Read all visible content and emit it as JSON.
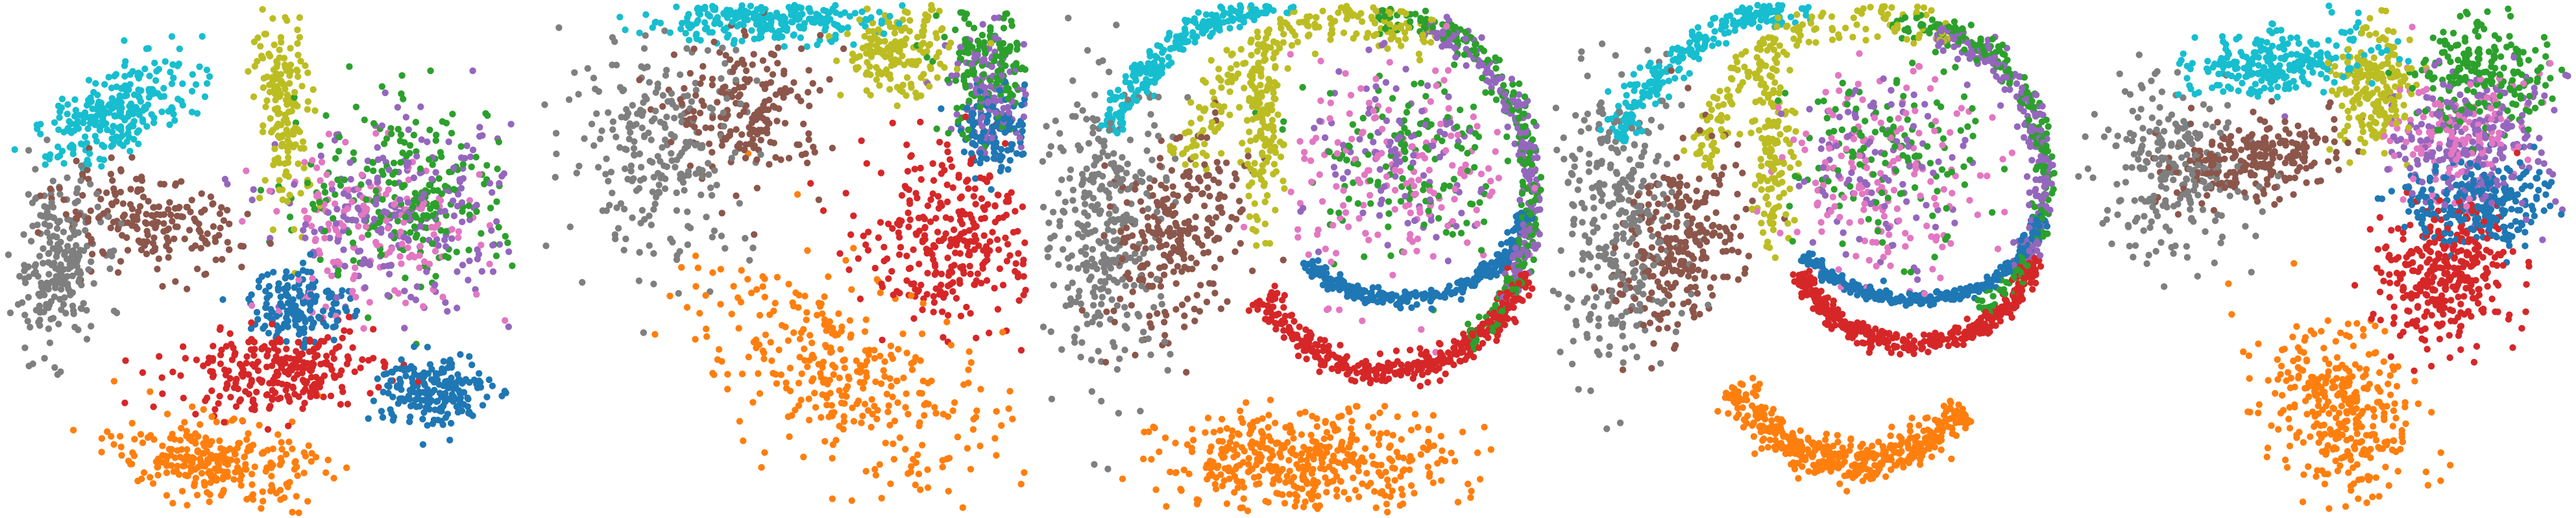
{
  "chart_data": {
    "type": "scatter",
    "axes_visible": false,
    "legend": "none",
    "grid": false,
    "colors": {
      "cyan": "#17becf",
      "olive": "#bcbd22",
      "brown": "#8c564b",
      "gray": "#7f7f7f",
      "green": "#2ca02c",
      "purple": "#9467bd",
      "pink": "#e377c2",
      "blue": "#1f77b4",
      "red": "#d62728",
      "orange": "#ff7f0e"
    },
    "panels": [
      {
        "xlim": [
          0,
          1
        ],
        "ylim": [
          0,
          1
        ],
        "clusters": [
          {
            "color": "cyan",
            "shape": "blob",
            "n": 260,
            "c": [
              0.22,
              0.79
            ],
            "r": [
              0.15,
              0.07
            ],
            "rot": 30
          },
          {
            "color": "gray",
            "shape": "blob",
            "n": 240,
            "c": [
              0.1,
              0.49
            ],
            "r": [
              0.08,
              0.15
            ],
            "rot": 0
          },
          {
            "color": "brown",
            "shape": "blob",
            "n": 200,
            "c": [
              0.28,
              0.57
            ],
            "r": [
              0.17,
              0.08
            ],
            "rot": -10
          },
          {
            "color": "olive",
            "shape": "blob",
            "n": 170,
            "c": [
              0.55,
              0.8
            ],
            "r": [
              0.05,
              0.18
            ],
            "rot": 5
          },
          {
            "color": "green",
            "shape": "blob",
            "n": 230,
            "c": [
              0.8,
              0.63
            ],
            "r": [
              0.2,
              0.16
            ],
            "rot": 0
          },
          {
            "color": "purple",
            "shape": "blob",
            "n": 230,
            "c": [
              0.78,
              0.58
            ],
            "r": [
              0.21,
              0.16
            ],
            "rot": 0
          },
          {
            "color": "pink",
            "shape": "blob",
            "n": 170,
            "c": [
              0.72,
              0.55
            ],
            "r": [
              0.2,
              0.15
            ],
            "rot": 0
          },
          {
            "color": "blue",
            "shape": "blob",
            "n": 160,
            "c": [
              0.58,
              0.41
            ],
            "r": [
              0.09,
              0.07
            ],
            "rot": 0
          },
          {
            "color": "red",
            "shape": "blob",
            "n": 280,
            "c": [
              0.54,
              0.28
            ],
            "r": [
              0.18,
              0.07
            ],
            "rot": 5
          },
          {
            "color": "blue",
            "shape": "blob",
            "n": 200,
            "c": [
              0.84,
              0.24
            ],
            "r": [
              0.1,
              0.07
            ],
            "rot": 0
          },
          {
            "color": "orange",
            "shape": "blob",
            "n": 280,
            "c": [
              0.41,
              0.1
            ],
            "r": [
              0.17,
              0.07
            ],
            "rot": -10
          }
        ]
      },
      {
        "xlim": [
          0,
          1
        ],
        "ylim": [
          0,
          1
        ],
        "clusters": [
          {
            "color": "cyan",
            "shape": "blob",
            "n": 260,
            "c": [
              0.45,
              0.97
            ],
            "r": [
              0.22,
              0.04
            ],
            "rot": 0
          },
          {
            "color": "gray",
            "shape": "blob",
            "n": 260,
            "c": [
              0.24,
              0.72
            ],
            "r": [
              0.18,
              0.2
            ],
            "rot": 0
          },
          {
            "color": "brown",
            "shape": "blob",
            "n": 200,
            "c": [
              0.43,
              0.79
            ],
            "r": [
              0.14,
              0.13
            ],
            "rot": 0
          },
          {
            "color": "olive",
            "shape": "blob",
            "n": 180,
            "c": [
              0.73,
              0.91
            ],
            "r": [
              0.1,
              0.08
            ],
            "rot": 0
          },
          {
            "color": "green",
            "shape": "blob",
            "n": 150,
            "c": [
              0.92,
              0.87
            ],
            "r": [
              0.09,
              0.12
            ],
            "rot": 0
          },
          {
            "color": "purple",
            "shape": "blob",
            "n": 130,
            "c": [
              0.93,
              0.83
            ],
            "r": [
              0.08,
              0.11
            ],
            "rot": 0
          },
          {
            "color": "blue",
            "shape": "blob",
            "n": 120,
            "c": [
              0.94,
              0.75
            ],
            "r": [
              0.07,
              0.07
            ],
            "rot": 0
          },
          {
            "color": "red",
            "shape": "blob",
            "n": 300,
            "c": [
              0.84,
              0.55
            ],
            "r": [
              0.17,
              0.16
            ],
            "rot": -35
          },
          {
            "color": "orange",
            "shape": "blob",
            "n": 340,
            "c": [
              0.62,
              0.27
            ],
            "r": [
              0.3,
              0.16
            ],
            "rot": -30
          }
        ]
      },
      {
        "xlim": [
          0,
          1
        ],
        "ylim": [
          0,
          1
        ],
        "clusters": [
          {
            "color": "cyan",
            "shape": "arc",
            "n": 260,
            "c": [
              0.55,
              0.62
            ],
            "r": [
              0.44,
              0.39
            ],
            "a": [
              95,
              160
            ],
            "w": 0.035
          },
          {
            "color": "olive",
            "shape": "arc",
            "n": 200,
            "c": [
              0.62,
              0.62
            ],
            "r": [
              0.33,
              0.35
            ],
            "a": [
              60,
              170
            ],
            "w": 0.06
          },
          {
            "color": "olive",
            "shape": "blob",
            "n": 140,
            "c": [
              0.44,
              0.75
            ],
            "r": [
              0.04,
              0.17
            ],
            "rot": 0
          },
          {
            "color": "gray",
            "shape": "blob",
            "n": 340,
            "c": [
              0.13,
              0.57
            ],
            "r": [
              0.12,
              0.26
            ],
            "rot": 0
          },
          {
            "color": "brown",
            "shape": "blob",
            "n": 260,
            "c": [
              0.27,
              0.54
            ],
            "r": [
              0.11,
              0.18
            ],
            "rot": -20
          },
          {
            "color": "green",
            "shape": "arc",
            "n": 230,
            "c": [
              0.72,
              0.63
            ],
            "r": [
              0.26,
              0.34
            ],
            "a": [
              -60,
              100
            ],
            "w": 0.04
          },
          {
            "color": "purple",
            "shape": "arc",
            "n": 220,
            "c": [
              0.72,
              0.63
            ],
            "r": [
              0.26,
              0.33
            ],
            "a": [
              -40,
              80
            ],
            "w": 0.05
          },
          {
            "color": "green",
            "shape": "blob",
            "n": 140,
            "c": [
              0.72,
              0.7
            ],
            "r": [
              0.18,
              0.18
            ],
            "rot": 0
          },
          {
            "color": "pink",
            "shape": "blob",
            "n": 170,
            "c": [
              0.72,
              0.66
            ],
            "r": [
              0.2,
              0.2
            ],
            "rot": 0
          },
          {
            "color": "purple",
            "shape": "blob",
            "n": 100,
            "c": [
              0.72,
              0.68
            ],
            "r": [
              0.18,
              0.17
            ],
            "rot": 0
          },
          {
            "color": "blue",
            "shape": "arc",
            "n": 300,
            "c": [
              0.72,
              0.63
            ],
            "r": [
              0.25,
              0.21
            ],
            "a": [
              -140,
              -10
            ],
            "w": 0.035
          },
          {
            "color": "red",
            "shape": "arc",
            "n": 380,
            "c": [
              0.69,
              0.58
            ],
            "r": [
              0.29,
              0.3
            ],
            "a": [
              -150,
              -20
            ],
            "w": 0.045
          },
          {
            "color": "orange",
            "shape": "blob",
            "n": 440,
            "c": [
              0.53,
              0.1
            ],
            "r": [
              0.26,
              0.09
            ],
            "rot": 0
          }
        ]
      },
      {
        "xlim": [
          0,
          1
        ],
        "ylim": [
          0,
          1
        ],
        "clusters": [
          {
            "color": "cyan",
            "shape": "arc",
            "n": 250,
            "c": [
              0.55,
              0.6
            ],
            "r": [
              0.45,
              0.4
            ],
            "a": [
              95,
              160
            ],
            "w": 0.035
          },
          {
            "color": "olive",
            "shape": "arc",
            "n": 170,
            "c": [
              0.62,
              0.62
            ],
            "r": [
              0.33,
              0.36
            ],
            "a": [
              60,
              170
            ],
            "w": 0.06
          },
          {
            "color": "olive",
            "shape": "blob",
            "n": 140,
            "c": [
              0.44,
              0.72
            ],
            "r": [
              0.04,
              0.18
            ],
            "rot": 0
          },
          {
            "color": "gray",
            "shape": "blob",
            "n": 330,
            "c": [
              0.13,
              0.57
            ],
            "r": [
              0.12,
              0.25
            ],
            "rot": 0
          },
          {
            "color": "brown",
            "shape": "blob",
            "n": 260,
            "c": [
              0.25,
              0.53
            ],
            "r": [
              0.1,
              0.18
            ],
            "rot": -20
          },
          {
            "color": "green",
            "shape": "arc",
            "n": 230,
            "c": [
              0.72,
              0.66
            ],
            "r": [
              0.26,
              0.3
            ],
            "a": [
              -60,
              100
            ],
            "w": 0.04
          },
          {
            "color": "purple",
            "shape": "arc",
            "n": 220,
            "c": [
              0.72,
              0.66
            ],
            "r": [
              0.26,
              0.29
            ],
            "a": [
              -40,
              80
            ],
            "w": 0.05
          },
          {
            "color": "green",
            "shape": "blob",
            "n": 130,
            "c": [
              0.66,
              0.7
            ],
            "r": [
              0.17,
              0.17
            ],
            "rot": 0
          },
          {
            "color": "pink",
            "shape": "blob",
            "n": 170,
            "c": [
              0.66,
              0.66
            ],
            "r": [
              0.18,
              0.18
            ],
            "rot": 0
          },
          {
            "color": "purple",
            "shape": "blob",
            "n": 100,
            "c": [
              0.66,
              0.68
            ],
            "r": [
              0.17,
              0.16
            ],
            "rot": 0
          },
          {
            "color": "blue",
            "shape": "arc",
            "n": 300,
            "c": [
              0.72,
              0.6
            ],
            "r": [
              0.25,
              0.18
            ],
            "a": [
              -150,
              -5
            ],
            "w": 0.035
          },
          {
            "color": "red",
            "shape": "arc",
            "n": 380,
            "c": [
              0.72,
              0.55
            ],
            "r": [
              0.24,
              0.22
            ],
            "a": [
              -160,
              -10
            ],
            "w": 0.045
          },
          {
            "color": "orange",
            "shape": "arc",
            "n": 420,
            "c": [
              0.6,
              0.4
            ],
            "r": [
              0.28,
              0.3
            ],
            "a": [
              -150,
              -40
            ],
            "w": 0.07
          }
        ]
      },
      {
        "xlim": [
          0,
          1
        ],
        "ylim": [
          0,
          1
        ],
        "clusters": [
          {
            "color": "cyan",
            "shape": "blob",
            "n": 250,
            "c": [
              0.42,
              0.89
            ],
            "r": [
              0.16,
              0.06
            ],
            "rot": 10
          },
          {
            "color": "gray",
            "shape": "blob",
            "n": 250,
            "c": [
              0.2,
              0.67
            ],
            "r": [
              0.14,
              0.14
            ],
            "rot": 0
          },
          {
            "color": "brown",
            "shape": "blob",
            "n": 230,
            "c": [
              0.36,
              0.7
            ],
            "r": [
              0.16,
              0.07
            ],
            "rot": 5
          },
          {
            "color": "olive",
            "shape": "blob",
            "n": 200,
            "c": [
              0.61,
              0.84
            ],
            "r": [
              0.07,
              0.11
            ],
            "rot": 0
          },
          {
            "color": "green",
            "shape": "blob",
            "n": 210,
            "c": [
              0.82,
              0.86
            ],
            "r": [
              0.13,
              0.1
            ],
            "rot": 0
          },
          {
            "color": "purple",
            "shape": "blob",
            "n": 220,
            "c": [
              0.8,
              0.73
            ],
            "r": [
              0.14,
              0.12
            ],
            "rot": 0
          },
          {
            "color": "pink",
            "shape": "blob",
            "n": 150,
            "c": [
              0.78,
              0.75
            ],
            "r": [
              0.13,
              0.12
            ],
            "rot": 0
          },
          {
            "color": "blue",
            "shape": "blob",
            "n": 280,
            "c": [
              0.82,
              0.61
            ],
            "r": [
              0.14,
              0.08
            ],
            "rot": 0
          },
          {
            "color": "red",
            "shape": "blob",
            "n": 330,
            "c": [
              0.75,
              0.47
            ],
            "r": [
              0.11,
              0.13
            ],
            "rot": -20
          },
          {
            "color": "orange",
            "shape": "blob",
            "n": 340,
            "c": [
              0.54,
              0.2
            ],
            "r": [
              0.12,
              0.16
            ],
            "rot": 35
          }
        ]
      }
    ]
  }
}
